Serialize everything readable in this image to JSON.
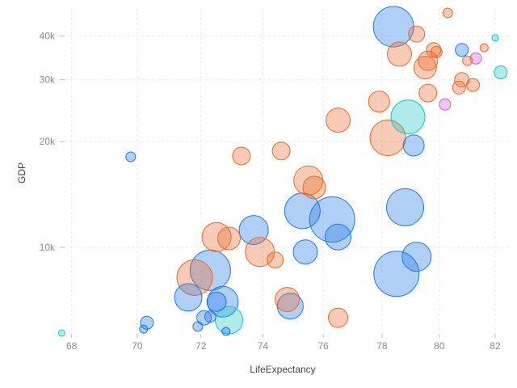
{
  "chart_data": {
    "type": "scatter",
    "title": "",
    "xlabel": "LifeExpectancy",
    "ylabel": "GDP",
    "x_scale": "log",
    "y_scale": "log",
    "xlim": [
      67.5,
      82.5
    ],
    "ylim": [
      5700,
      48000
    ],
    "x_ticks": [
      68,
      70,
      72,
      74,
      76,
      78,
      80,
      82
    ],
    "y_ticks": [
      {
        "value": 10000,
        "label": "10k"
      },
      {
        "value": 20000,
        "label": "20k"
      },
      {
        "value": 30000,
        "label": "30k"
      },
      {
        "value": 40000,
        "label": "40k"
      }
    ],
    "grid": true,
    "legend": "none",
    "colors": {
      "blue": "#1f77e8",
      "orange": "#e8692a",
      "teal": "#17c5c0",
      "violet": "#d55ae8"
    },
    "points": [
      {
        "x": 78.4,
        "y": 42500,
        "size": 25,
        "color": "blue"
      },
      {
        "x": 80.3,
        "y": 46500,
        "size": 6,
        "color": "orange"
      },
      {
        "x": 79.2,
        "y": 40500,
        "size": 10,
        "color": "orange"
      },
      {
        "x": 78.6,
        "y": 35500,
        "size": 15,
        "color": "orange"
      },
      {
        "x": 80.8,
        "y": 36500,
        "size": 8,
        "color": "blue"
      },
      {
        "x": 81.6,
        "y": 37000,
        "size": 5,
        "color": "orange"
      },
      {
        "x": 82.0,
        "y": 39500,
        "size": 4,
        "color": "teal"
      },
      {
        "x": 79.8,
        "y": 36500,
        "size": 9,
        "color": "orange"
      },
      {
        "x": 79.6,
        "y": 34000,
        "size": 12,
        "color": "orange"
      },
      {
        "x": 79.5,
        "y": 32500,
        "size": 14,
        "color": "orange"
      },
      {
        "x": 79.9,
        "y": 36000,
        "size": 7,
        "color": "orange"
      },
      {
        "x": 81.3,
        "y": 34500,
        "size": 7,
        "color": "violet"
      },
      {
        "x": 81.0,
        "y": 34000,
        "size": 6,
        "color": "orange"
      },
      {
        "x": 82.2,
        "y": 31500,
        "size": 8,
        "color": "teal"
      },
      {
        "x": 80.8,
        "y": 30000,
        "size": 9,
        "color": "orange"
      },
      {
        "x": 80.7,
        "y": 28500,
        "size": 8,
        "color": "orange"
      },
      {
        "x": 81.2,
        "y": 29000,
        "size": 8,
        "color": "orange"
      },
      {
        "x": 79.6,
        "y": 27500,
        "size": 11,
        "color": "orange"
      },
      {
        "x": 77.9,
        "y": 26000,
        "size": 13,
        "color": "orange"
      },
      {
        "x": 80.2,
        "y": 25500,
        "size": 7,
        "color": "violet"
      },
      {
        "x": 78.9,
        "y": 23500,
        "size": 21,
        "color": "teal"
      },
      {
        "x": 78.2,
        "y": 20500,
        "size": 22,
        "color": "orange"
      },
      {
        "x": 79.1,
        "y": 19500,
        "size": 13,
        "color": "blue"
      },
      {
        "x": 76.5,
        "y": 23000,
        "size": 15,
        "color": "orange"
      },
      {
        "x": 74.6,
        "y": 18800,
        "size": 11,
        "color": "orange"
      },
      {
        "x": 73.3,
        "y": 18200,
        "size": 11,
        "color": "orange"
      },
      {
        "x": 69.8,
        "y": 18100,
        "size": 6,
        "color": "blue"
      },
      {
        "x": 75.5,
        "y": 15500,
        "size": 18,
        "color": "orange"
      },
      {
        "x": 75.7,
        "y": 14800,
        "size": 14,
        "color": "orange"
      },
      {
        "x": 78.8,
        "y": 13000,
        "size": 23,
        "color": "blue"
      },
      {
        "x": 75.3,
        "y": 12700,
        "size": 22,
        "color": "blue"
      },
      {
        "x": 76.3,
        "y": 12000,
        "size": 28,
        "color": "blue"
      },
      {
        "x": 73.7,
        "y": 11200,
        "size": 18,
        "color": "blue"
      },
      {
        "x": 76.5,
        "y": 10700,
        "size": 16,
        "color": "blue"
      },
      {
        "x": 72.5,
        "y": 10700,
        "size": 18,
        "color": "orange"
      },
      {
        "x": 72.9,
        "y": 10600,
        "size": 14,
        "color": "orange"
      },
      {
        "x": 73.9,
        "y": 9700,
        "size": 18,
        "color": "orange"
      },
      {
        "x": 75.4,
        "y": 9700,
        "size": 15,
        "color": "blue"
      },
      {
        "x": 79.2,
        "y": 9400,
        "size": 18,
        "color": "blue"
      },
      {
        "x": 74.4,
        "y": 9200,
        "size": 10,
        "color": "orange"
      },
      {
        "x": 72.3,
        "y": 8600,
        "size": 25,
        "color": "blue"
      },
      {
        "x": 71.8,
        "y": 8200,
        "size": 22,
        "color": "orange"
      },
      {
        "x": 78.5,
        "y": 8400,
        "size": 28,
        "color": "blue"
      },
      {
        "x": 71.6,
        "y": 7200,
        "size": 17,
        "color": "blue"
      },
      {
        "x": 72.7,
        "y": 7000,
        "size": 19,
        "color": "blue"
      },
      {
        "x": 72.5,
        "y": 7000,
        "size": 12,
        "color": "blue"
      },
      {
        "x": 74.8,
        "y": 7100,
        "size": 15,
        "color": "orange"
      },
      {
        "x": 74.9,
        "y": 6800,
        "size": 16,
        "color": "blue"
      },
      {
        "x": 76.5,
        "y": 6300,
        "size": 12,
        "color": "orange"
      },
      {
        "x": 72.9,
        "y": 6200,
        "size": 17,
        "color": "teal"
      },
      {
        "x": 72.1,
        "y": 6300,
        "size": 9,
        "color": "blue"
      },
      {
        "x": 72.3,
        "y": 6350,
        "size": 7,
        "color": "blue"
      },
      {
        "x": 70.3,
        "y": 6100,
        "size": 8,
        "color": "blue"
      },
      {
        "x": 71.9,
        "y": 5950,
        "size": 6,
        "color": "blue"
      },
      {
        "x": 70.2,
        "y": 5850,
        "size": 5,
        "color": "blue"
      },
      {
        "x": 72.8,
        "y": 5760,
        "size": 5,
        "color": "blue"
      },
      {
        "x": 67.7,
        "y": 5700,
        "size": 4,
        "color": "teal"
      }
    ]
  }
}
